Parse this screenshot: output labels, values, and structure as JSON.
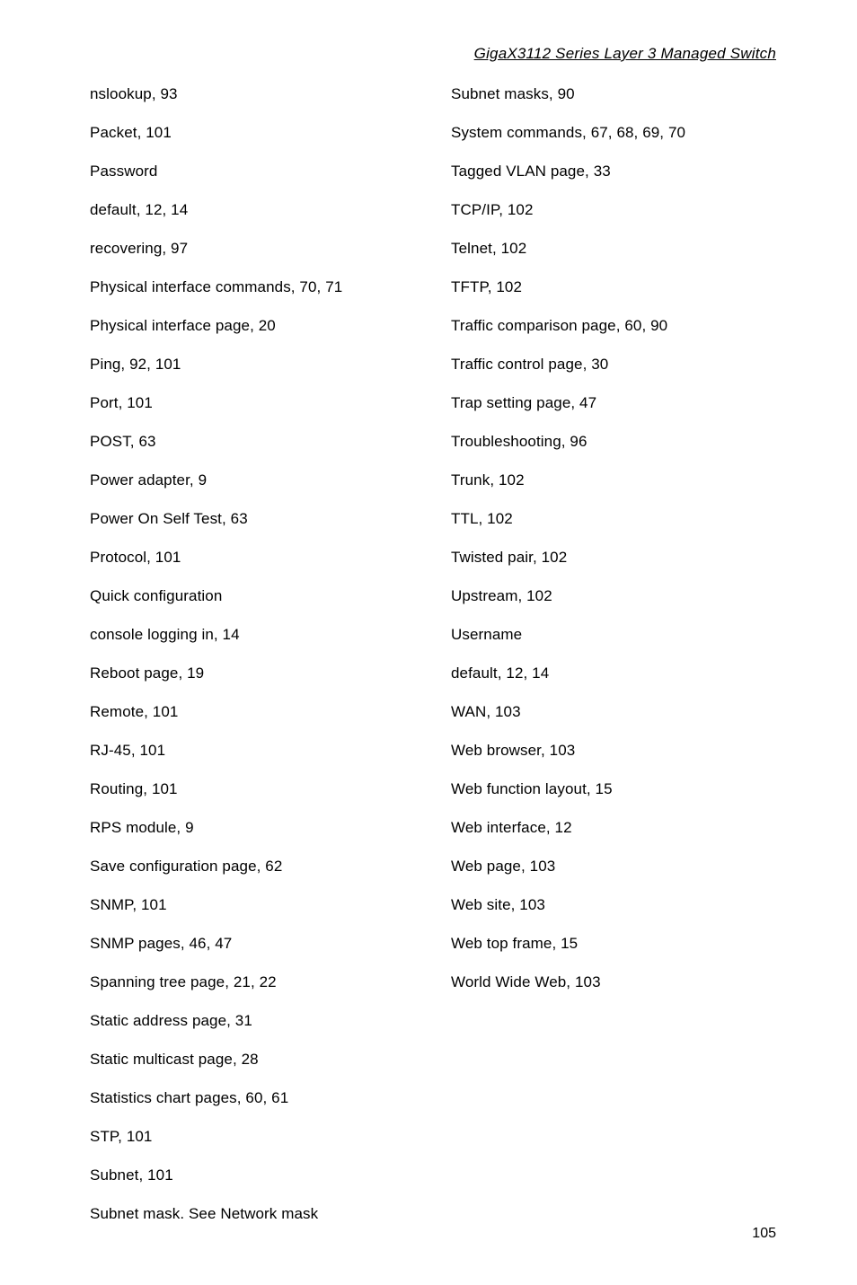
{
  "header": {
    "title": "GigaX3112 Series Layer 3 Managed Switch"
  },
  "left_column": [
    "nslookup, 93",
    "Packet, 101",
    "Password",
    "default, 12, 14",
    "recovering, 97",
    "Physical interface commands, 70, 71",
    "Physical interface page, 20",
    "Ping, 92, 101",
    "Port, 101",
    "POST, 63",
    "Power adapter, 9",
    "Power On Self Test, 63",
    "Protocol, 101",
    "Quick configuration",
    "console logging in, 14",
    "Reboot page, 19",
    "Remote, 101",
    "RJ-45, 101",
    "Routing, 101",
    "RPS module, 9",
    "Save configuration page, 62",
    "SNMP, 101",
    "SNMP pages, 46, 47",
    "Spanning tree page, 21, 22",
    "Static address page, 31",
    "Static multicast page, 28",
    "Statistics chart pages, 60, 61",
    "STP, 101",
    "Subnet, 101",
    "Subnet mask. See Network mask"
  ],
  "right_column": [
    "Subnet masks, 90",
    "System commands, 67, 68, 69, 70",
    "Tagged VLAN page, 33",
    "TCP/IP, 102",
    "Telnet, 102",
    "TFTP, 102",
    "Traffic comparison page, 60, 90",
    "Traffic control page, 30",
    "Trap setting page, 47",
    "Troubleshooting, 96",
    "Trunk, 102",
    "TTL, 102",
    "Twisted pair, 102",
    "Upstream, 102",
    "Username",
    "default, 12, 14",
    "WAN, 103",
    "Web browser, 103",
    "Web function layout, 15",
    "Web interface, 12",
    "Web page, 103",
    "Web site, 103",
    "Web top frame, 15",
    "World Wide Web, 103"
  ],
  "page_number": "105"
}
